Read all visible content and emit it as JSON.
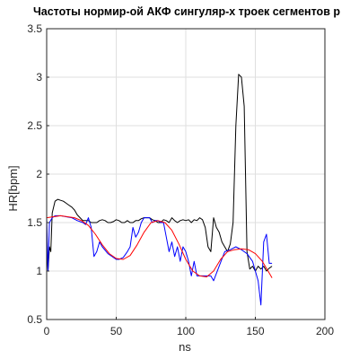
{
  "chart_data": {
    "type": "line",
    "title": "Частоты нормир-ой АКФ сингуляр-х троек сегментов р",
    "xlabel": "ns",
    "ylabel": "HR[bpm]",
    "xlim": [
      0,
      200
    ],
    "ylim": [
      0.5,
      3.5
    ],
    "xticks": [
      0,
      50,
      100,
      150,
      200
    ],
    "yticks": [
      0.5,
      1,
      1.5,
      2,
      2.5,
      3,
      3.5
    ],
    "grid": true,
    "series": [
      {
        "color": "#000000",
        "x": [
          0,
          1,
          2,
          3,
          4,
          6,
          8,
          10,
          12,
          14,
          16,
          18,
          20,
          22,
          24,
          26,
          28,
          30,
          32,
          34,
          36,
          38,
          40,
          42,
          44,
          46,
          48,
          50,
          52,
          54,
          56,
          58,
          60,
          62,
          64,
          66,
          68,
          70,
          72,
          74,
          76,
          78,
          80,
          82,
          84,
          86,
          88,
          90,
          92,
          94,
          96,
          98,
          100,
          102,
          104,
          106,
          108,
          110,
          112,
          114,
          116,
          118,
          120,
          122,
          124,
          126,
          128,
          130,
          132,
          134,
          136,
          138,
          140,
          142,
          144,
          146,
          148,
          150,
          152,
          154,
          156,
          158,
          160,
          162
        ],
        "y": [
          1.25,
          1.0,
          1.25,
          1.2,
          1.6,
          1.72,
          1.74,
          1.73,
          1.72,
          1.7,
          1.68,
          1.66,
          1.63,
          1.58,
          1.55,
          1.52,
          1.52,
          1.52,
          1.5,
          1.5,
          1.5,
          1.52,
          1.53,
          1.52,
          1.5,
          1.5,
          1.51,
          1.53,
          1.52,
          1.5,
          1.5,
          1.52,
          1.5,
          1.5,
          1.52,
          1.52,
          1.54,
          1.55,
          1.55,
          1.55,
          1.53,
          1.52,
          1.5,
          1.5,
          1.53,
          1.52,
          1.5,
          1.55,
          1.52,
          1.5,
          1.52,
          1.53,
          1.52,
          1.53,
          1.5,
          1.53,
          1.52,
          1.55,
          1.53,
          1.45,
          1.25,
          1.2,
          1.55,
          1.45,
          1.4,
          1.3,
          1.25,
          1.2,
          1.28,
          1.5,
          2.5,
          3.03,
          3.0,
          2.7,
          1.2,
          1.02,
          1.05,
          1.0,
          1.05,
          1.02,
          1.05,
          1.0,
          1.03,
          1.05
        ]
      },
      {
        "color": "#0000ff",
        "x": [
          0,
          1,
          2,
          4,
          6,
          10,
          14,
          18,
          22,
          26,
          28,
          30,
          32,
          34,
          36,
          38,
          40,
          44,
          48,
          50,
          52,
          55,
          58,
          60,
          62,
          64,
          66,
          68,
          70,
          74,
          76,
          78,
          80,
          82,
          84,
          86,
          88,
          90,
          92,
          94,
          96,
          98,
          100,
          102,
          104,
          106,
          108,
          110,
          114,
          118,
          120,
          124,
          128,
          132,
          136,
          140,
          144,
          148,
          150,
          152,
          154,
          156,
          158,
          160,
          162
        ],
        "y": [
          1.55,
          1.0,
          1.5,
          1.55,
          1.57,
          1.57,
          1.56,
          1.55,
          1.52,
          1.5,
          1.48,
          1.55,
          1.45,
          1.15,
          1.2,
          1.3,
          1.25,
          1.18,
          1.14,
          1.12,
          1.12,
          1.14,
          1.2,
          1.25,
          1.45,
          1.35,
          1.4,
          1.5,
          1.55,
          1.55,
          1.5,
          1.52,
          1.52,
          1.5,
          1.5,
          1.35,
          1.2,
          1.3,
          1.15,
          1.25,
          1.1,
          1.25,
          1.2,
          1.1,
          0.95,
          1.1,
          0.95,
          0.95,
          0.95,
          0.95,
          0.9,
          1.05,
          1.2,
          1.22,
          1.25,
          1.22,
          1.18,
          1.1,
          1.0,
          0.9,
          0.65,
          1.3,
          1.38,
          1.08,
          1.08
        ]
      },
      {
        "color": "#ff0000",
        "x": [
          0,
          5,
          10,
          15,
          20,
          25,
          30,
          35,
          40,
          45,
          50,
          55,
          60,
          65,
          70,
          75,
          80,
          85,
          90,
          95,
          100,
          105,
          110,
          115,
          120,
          125,
          130,
          135,
          140,
          145,
          150,
          155,
          160,
          162
        ],
        "y": [
          1.55,
          1.56,
          1.57,
          1.56,
          1.55,
          1.52,
          1.47,
          1.38,
          1.27,
          1.18,
          1.13,
          1.12,
          1.16,
          1.27,
          1.4,
          1.5,
          1.52,
          1.5,
          1.42,
          1.28,
          1.12,
          1.0,
          0.95,
          0.94,
          1.0,
          1.12,
          1.2,
          1.22,
          1.23,
          1.22,
          1.18,
          1.1,
          0.98,
          0.93
        ]
      }
    ]
  }
}
